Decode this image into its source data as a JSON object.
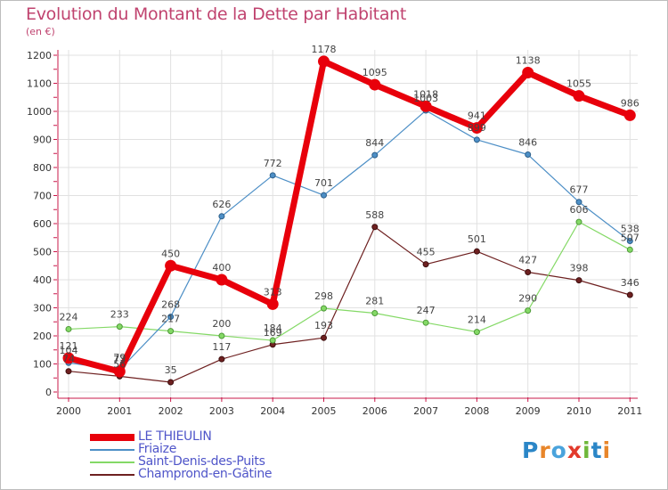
{
  "header": {
    "title": "Evolution du Montant de la Dette par Habitant",
    "unit": "(en €)"
  },
  "brand": {
    "text": "Proxiti",
    "colors": [
      "#2b86c7",
      "#e8862a",
      "#4aa3dc",
      "#e23a2c",
      "#6fb83a",
      "#2b86c7",
      "#e8862a"
    ]
  },
  "chart_data": {
    "type": "line",
    "title": "Evolution du Montant de la Dette par Habitant",
    "ylabel": "(en €)",
    "xlabel": "",
    "x": [
      "2000",
      "2001",
      "2002",
      "2003",
      "2004",
      "2005",
      "2006",
      "2007",
      "2008",
      "2009",
      "2010",
      "2011"
    ],
    "ylim": [
      0,
      1200
    ],
    "yticks": [
      0,
      100,
      200,
      300,
      400,
      500,
      600,
      700,
      800,
      900,
      1000,
      1100,
      1200
    ],
    "grid": true,
    "legend_position": "bottom-left",
    "series": [
      {
        "name": "LE THIEULIN",
        "color": "#e8000b",
        "values": [
          121,
          73,
          450,
          400,
          313,
          1178,
          1095,
          1018,
          941,
          1138,
          1055,
          986
        ]
      },
      {
        "name": "Friaize",
        "color": "#4d8fc6",
        "values": [
          104,
          79,
          268,
          626,
          772,
          701,
          844,
          1003,
          899,
          846,
          677,
          538
        ]
      },
      {
        "name": "Saint-Denis-des-Puits",
        "color": "#84d966",
        "values": [
          224,
          233,
          217,
          200,
          184,
          298,
          281,
          247,
          214,
          290,
          606,
          507
        ]
      },
      {
        "name": "Champrond-en-Gâtine",
        "color": "#6e2020",
        "values": [
          74,
          56,
          35,
          117,
          169,
          193,
          588,
          455,
          501,
          427,
          398,
          346
        ]
      }
    ],
    "data_labels": [
      [
        "121",
        "73",
        "450",
        "400",
        "313",
        "1178",
        "1095",
        "1018",
        "941",
        "1138",
        "1055",
        "986"
      ],
      [
        "104",
        "79",
        "268",
        "626",
        "772",
        "701",
        "844",
        "1003",
        "899",
        "846",
        "677",
        "538"
      ],
      [
        "224",
        "233",
        "217",
        "200",
        "184",
        "298",
        "281",
        "247",
        "214",
        "290",
        "606",
        "507"
      ],
      [
        "74",
        "56",
        "35",
        "117",
        "169",
        "193",
        "588",
        "455",
        "501",
        "427",
        "398",
        "346"
      ]
    ]
  }
}
